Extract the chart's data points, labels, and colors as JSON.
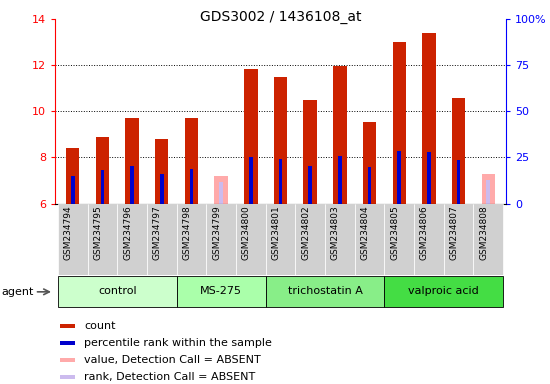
{
  "title": "GDS3002 / 1436108_at",
  "samples": [
    "GSM234794",
    "GSM234795",
    "GSM234796",
    "GSM234797",
    "GSM234798",
    "GSM234799",
    "GSM234800",
    "GSM234801",
    "GSM234802",
    "GSM234803",
    "GSM234804",
    "GSM234805",
    "GSM234806",
    "GSM234807",
    "GSM234808"
  ],
  "count_values": [
    8.4,
    8.9,
    9.7,
    8.8,
    9.7,
    6.0,
    11.85,
    11.5,
    10.5,
    11.95,
    9.55,
    13.0,
    13.4,
    10.6,
    6.0
  ],
  "percentile_values": [
    7.2,
    7.45,
    7.65,
    7.3,
    7.5,
    6.0,
    8.0,
    7.95,
    7.65,
    8.05,
    7.6,
    8.3,
    8.25,
    7.9,
    6.0
  ],
  "absent_value": [
    null,
    null,
    null,
    null,
    null,
    7.2,
    null,
    null,
    null,
    null,
    null,
    null,
    null,
    null,
    7.3
  ],
  "absent_rank": [
    null,
    null,
    null,
    null,
    null,
    6.95,
    null,
    null,
    null,
    null,
    null,
    null,
    null,
    null,
    7.0
  ],
  "is_absent": [
    false,
    false,
    false,
    false,
    false,
    true,
    false,
    false,
    false,
    false,
    false,
    false,
    false,
    false,
    true
  ],
  "agents": [
    {
      "label": "control",
      "start": 0,
      "end": 4,
      "color": "#ccffcc"
    },
    {
      "label": "MS-275",
      "start": 4,
      "end": 7,
      "color": "#aaffaa"
    },
    {
      "label": "trichostatin A",
      "start": 7,
      "end": 11,
      "color": "#88ee88"
    },
    {
      "label": "valproic acid",
      "start": 11,
      "end": 15,
      "color": "#44dd44"
    }
  ],
  "ylim_left": [
    6,
    14
  ],
  "ylim_right": [
    0,
    100
  ],
  "yticks_left": [
    6,
    8,
    10,
    12,
    14
  ],
  "yticks_right": [
    0,
    25,
    50,
    75,
    100
  ],
  "ytick_labels_right": [
    "0",
    "25",
    "50",
    "75",
    "100%"
  ],
  "bar_color": "#cc2200",
  "percentile_color": "#0000cc",
  "absent_bar_color": "#ffaaaa",
  "absent_rank_color": "#ccbbee",
  "grid_color": "black",
  "sample_box_color": "#d0d0d0",
  "legend_items": [
    {
      "color": "#cc2200",
      "label": "count"
    },
    {
      "color": "#0000cc",
      "label": "percentile rank within the sample"
    },
    {
      "color": "#ffaaaa",
      "label": "value, Detection Call = ABSENT"
    },
    {
      "color": "#ccbbee",
      "label": "rank, Detection Call = ABSENT"
    }
  ]
}
